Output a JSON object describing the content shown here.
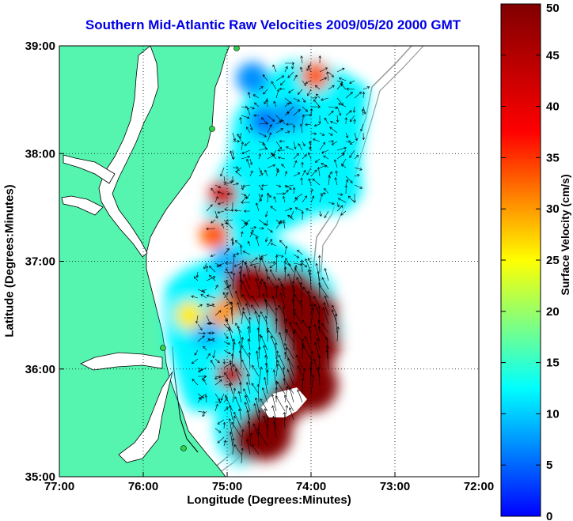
{
  "chart_data": {
    "type": "heatmap",
    "title": "Southern Mid-Atlantic Raw Velocities 2009/05/20 2000 GMT",
    "xlabel": "Longitude (Degrees:Minutes)",
    "ylabel": "Latitude (Degrees:Minutes)",
    "colorbar_label": "Surface Velocity (cm/s)",
    "x_ticks": [
      "77:00",
      "76:00",
      "75:00",
      "74:00",
      "73:00",
      "72:00"
    ],
    "y_ticks": [
      "39:00",
      "38:00",
      "37:00",
      "36:00",
      "35:00"
    ],
    "colorbar_ticks": [
      "0",
      "5",
      "10",
      "15",
      "20",
      "25",
      "30",
      "35",
      "40",
      "45",
      "50"
    ],
    "xlim": [
      -77,
      -72
    ],
    "ylim": [
      35,
      39
    ],
    "clim": [
      0,
      50
    ],
    "grid": true,
    "colors": {
      "land": "#55f5b0",
      "title": "#0000e6",
      "arrow": "#000000"
    },
    "velocity_hotspots": [
      {
        "lon": -75.05,
        "lat": 37.62,
        "speed": 42
      },
      {
        "lon": -75.15,
        "lat": 37.25,
        "speed": 33
      },
      {
        "lon": -73.95,
        "lat": 38.72,
        "speed": 33
      },
      {
        "lon": -74.7,
        "lat": 36.75,
        "speed": 48
      },
      {
        "lon": -74.15,
        "lat": 36.45,
        "speed": 50
      },
      {
        "lon": -74.0,
        "lat": 35.85,
        "speed": 50
      },
      {
        "lon": -74.55,
        "lat": 35.4,
        "speed": 50
      },
      {
        "lon": -74.95,
        "lat": 35.95,
        "speed": 45
      },
      {
        "lon": -75.05,
        "lat": 36.52,
        "speed": 30
      },
      {
        "lon": -75.45,
        "lat": 36.5,
        "speed": 26
      }
    ]
  }
}
